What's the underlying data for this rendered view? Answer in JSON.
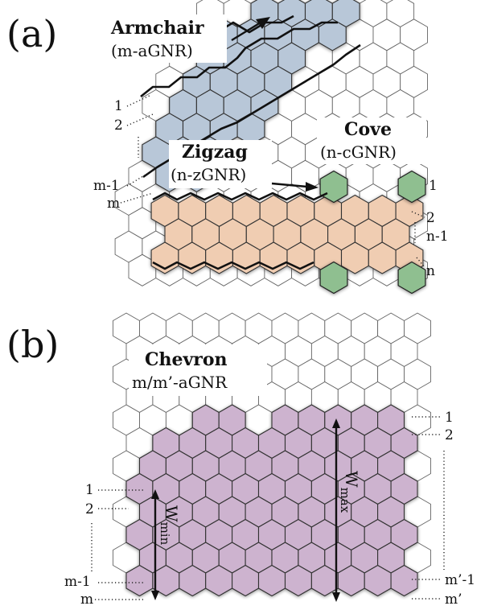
{
  "panel_a": {
    "label": "(a)",
    "armchair": {
      "title": "Armchair",
      "subtitle": "(m-aGNR)"
    },
    "zigzag": {
      "title": "Zigzag",
      "subtitle": "(n-zGNR)"
    },
    "cove": {
      "title": "Cove",
      "subtitle": "(n-cGNR)"
    },
    "left_indices": [
      "1",
      "2",
      "m-1",
      "m"
    ],
    "right_indices": [
      "1",
      "2",
      "n-1",
      "n"
    ],
    "colors": {
      "armchair": "#b8c7d8",
      "zigzag": "#f0cdb2",
      "cove": "#8fbf90"
    }
  },
  "panel_b": {
    "label": "(b)",
    "chevron": {
      "title": "Chevron",
      "subtitle": "m/m’-aGNR"
    },
    "left_indices": [
      "1",
      "2",
      "m-1",
      "m"
    ],
    "right_indices": [
      "1",
      "2",
      "m’-1",
      "m’"
    ],
    "w_min": "W_min",
    "w_max": "W_max",
    "colors": {
      "chevron": "#cdb3cf"
    }
  }
}
